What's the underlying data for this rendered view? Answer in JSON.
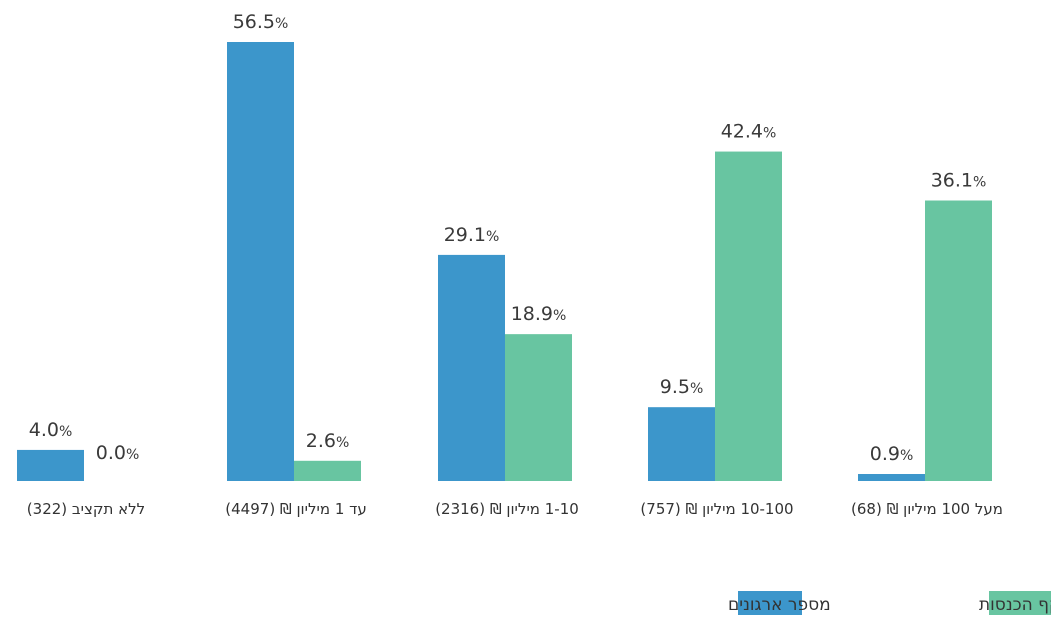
{
  "chart_data": {
    "type": "bar",
    "categories": [
      "ללא תקציב (322)",
      "עד 1 מיליון ₪ (4497)",
      "1-10 מיליון ₪ (2316)",
      "10-100 מיליון ₪ (757)",
      "מעל 100 מיליון ₪ (68)"
    ],
    "series": [
      {
        "name": "מספר ארגונים",
        "values": [
          4.0,
          56.5,
          29.1,
          9.5,
          0.9
        ],
        "color": "#3c96cb"
      },
      {
        "name": "היקף הכנסות",
        "values": [
          0.0,
          2.6,
          18.9,
          42.4,
          36.1
        ],
        "color": "#68c5a1"
      }
    ],
    "value_suffix": "%",
    "ylim": [
      0,
      56.5
    ],
    "grid": false,
    "legend_position": "bottom-right"
  }
}
